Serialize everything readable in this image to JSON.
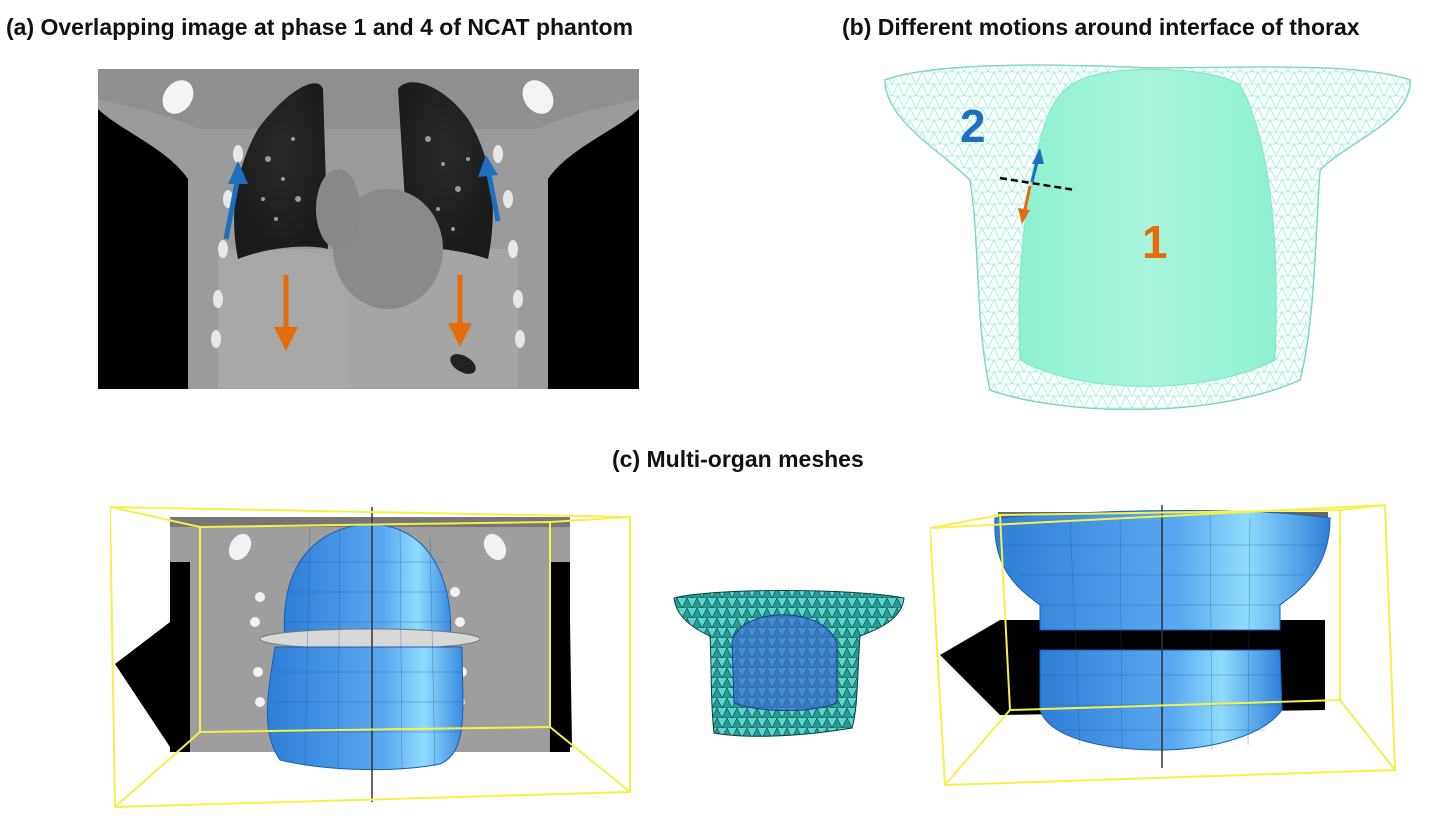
{
  "panel_a": {
    "caption": "(a) Overlapping image at phase 1 and 4 of NCAT phantom"
  },
  "panel_b": {
    "caption": "(b) Different motions around interface of thorax",
    "label_outer": "2",
    "label_inner": "1"
  },
  "panel_c": {
    "caption": "(c) Multi-organ meshes"
  },
  "colors": {
    "blue_arrow": "#1f6fbf",
    "orange_arrow": "#e46c0a",
    "mesh_cyan": "#7fffd4",
    "organ_blue": "#3d8fe0",
    "bbox_yellow": "#f5f04a"
  }
}
